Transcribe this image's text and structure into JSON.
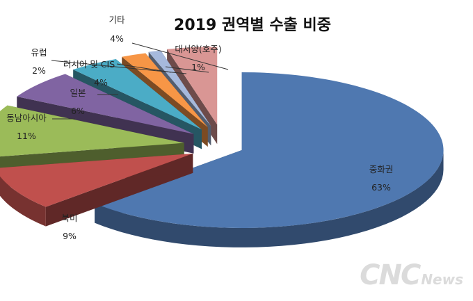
{
  "chart_data": {
    "type": "pie",
    "title": "2019 권역별 수출 비중",
    "unit": "%",
    "categories": [
      "중화권",
      "북미",
      "동남아시아",
      "일본",
      "러시아 및 CIS",
      "유럽",
      "대서양(호주)",
      "기타"
    ],
    "values": [
      63,
      9,
      11,
      6,
      4,
      2,
      1,
      4
    ],
    "value_labels": [
      "63%",
      "9%",
      "11%",
      "6%",
      "4%",
      "2%",
      "1%",
      "4%"
    ],
    "colors": [
      "#4F78B0",
      "#C0504D",
      "#9BBB59",
      "#8064A2",
      "#4BACC6",
      "#F79646",
      "#A6B9DC",
      "#D99694"
    ],
    "style": "3d-exploded"
  },
  "watermark": {
    "main": "CNC",
    "sub": "News"
  }
}
